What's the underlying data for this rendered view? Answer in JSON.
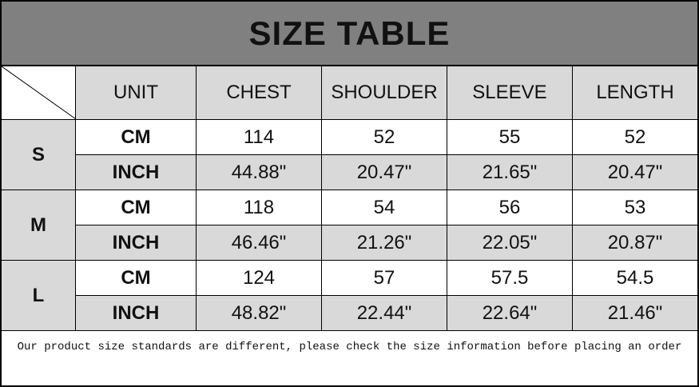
{
  "title": "SIZE TABLE",
  "headers": [
    "UNIT",
    "CHEST",
    "SHOULDER",
    "SLEEVE",
    "LENGTH"
  ],
  "sizes": [
    {
      "size": "S",
      "rows": [
        {
          "unit": "CM",
          "values": [
            "114",
            "52",
            "55",
            "52"
          ]
        },
        {
          "unit": "INCH",
          "values": [
            "44.88\"",
            "20.47\"",
            "21.65\"",
            "20.47\""
          ]
        }
      ]
    },
    {
      "size": "M",
      "rows": [
        {
          "unit": "CM",
          "values": [
            "118",
            "54",
            "56",
            "53"
          ]
        },
        {
          "unit": "INCH",
          "values": [
            "46.46\"",
            "21.26\"",
            "22.05\"",
            "20.87\""
          ]
        }
      ]
    },
    {
      "size": "L",
      "rows": [
        {
          "unit": "CM",
          "values": [
            "124",
            "57",
            "57.5",
            "54.5"
          ]
        },
        {
          "unit": "INCH",
          "values": [
            "48.82\"",
            "22.44\"",
            "22.64\"",
            "21.46\""
          ]
        }
      ]
    }
  ],
  "note": "Our product size standards are different, please check the size information before placing an order",
  "colors": {
    "title_bg": "#808080",
    "shaded_cell": "#d9d9d9",
    "plain_cell": "#ffffff"
  }
}
